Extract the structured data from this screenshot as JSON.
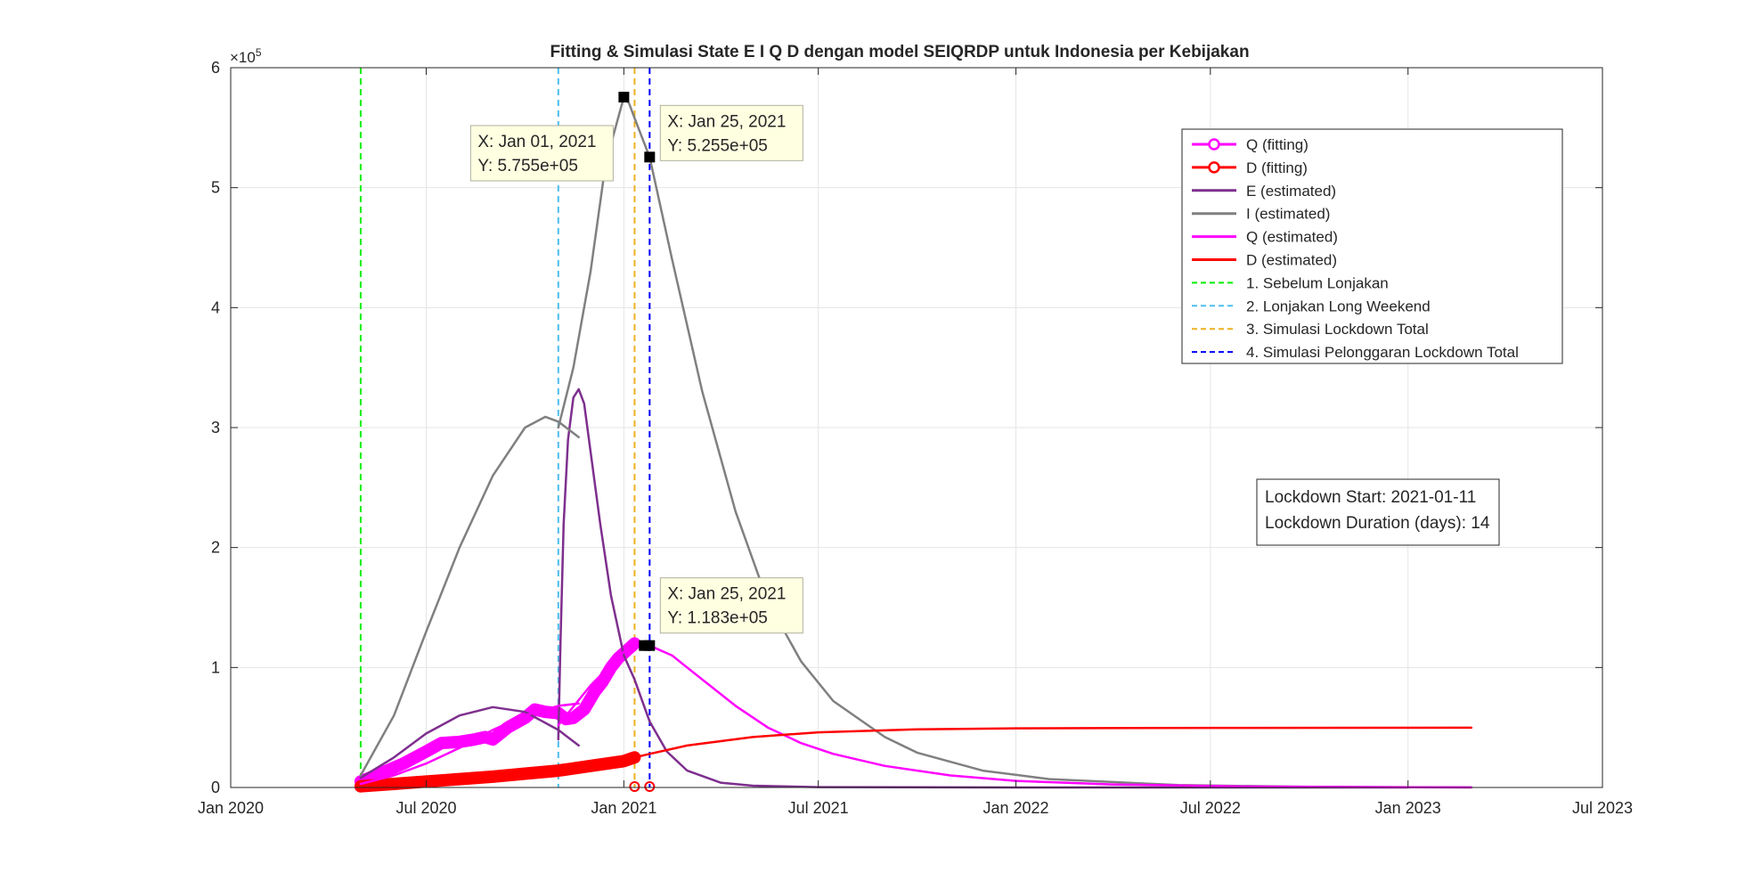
{
  "chart_data": {
    "type": "line",
    "title": "Fitting & Simulasi State  E I Q D dengan model SEIQRDP untuk Indonesia per Kebijakan",
    "xlabel": "",
    "ylabel": "",
    "y_exponent_label": "×10",
    "y_exponent_power": "5",
    "xlim": [
      "2020-01-01",
      "2023-07-01"
    ],
    "ylim": [
      0,
      600000
    ],
    "grid": true,
    "x_ticks": [
      {
        "date": "2020-01-01",
        "label": "Jan 2020"
      },
      {
        "date": "2020-07-01",
        "label": "Jul 2020"
      },
      {
        "date": "2021-01-01",
        "label": "Jan 2021"
      },
      {
        "date": "2021-07-01",
        "label": "Jul 2021"
      },
      {
        "date": "2022-01-01",
        "label": "Jan 2022"
      },
      {
        "date": "2022-07-01",
        "label": "Jul 2022"
      },
      {
        "date": "2023-01-01",
        "label": "Jan 2023"
      },
      {
        "date": "2023-07-01",
        "label": "Jul 2023"
      }
    ],
    "y_ticks": [
      {
        "value": 0,
        "label": "0"
      },
      {
        "value": 100000,
        "label": "1"
      },
      {
        "value": 200000,
        "label": "2"
      },
      {
        "value": 300000,
        "label": "3"
      },
      {
        "value": 400000,
        "label": "4"
      },
      {
        "value": 500000,
        "label": "5"
      },
      {
        "value": 600000,
        "label": "6"
      }
    ],
    "legend_position": "top-right",
    "legend": [
      {
        "label": "Q (fitting)",
        "color": "#ff00ff",
        "style": "solid-marker"
      },
      {
        "label": "D (fitting)",
        "color": "#ff0000",
        "style": "solid-marker"
      },
      {
        "label": "E (estimated)",
        "color": "#7e2f8e",
        "style": "solid"
      },
      {
        "label": "I (estimated)",
        "color": "#808080",
        "style": "solid"
      },
      {
        "label": "Q (estimated)",
        "color": "#ff00ff",
        "style": "solid"
      },
      {
        "label": "D (estimated)",
        "color": "#ff0000",
        "style": "solid"
      },
      {
        "label": "1. Sebelum Lonjakan",
        "color": "#00ee00",
        "style": "dashed"
      },
      {
        "label": "2. Lonjakan Long Weekend",
        "color": "#4dbeee",
        "style": "dashed"
      },
      {
        "label": "3. Simulasi Lockdown Total",
        "color": "#edb120",
        "style": "dashed"
      },
      {
        "label": "4. Simulasi Pelonggaran Lockdown Total",
        "color": "#0000ff",
        "style": "dashed"
      }
    ],
    "vlines": [
      {
        "date": "2020-05-01",
        "color": "#00ee00"
      },
      {
        "date": "2020-11-01",
        "color": "#4dbeee"
      },
      {
        "date": "2021-01-11",
        "color": "#edb120"
      },
      {
        "date": "2021-01-25",
        "color": "#0000ff"
      }
    ],
    "series": [
      {
        "name": "Q (fitting)",
        "color": "#ff00ff",
        "width": 14,
        "segments": [
          [
            [
              "2020-05-01",
              5000
            ],
            [
              "2020-05-20",
              12000
            ],
            [
              "2020-06-10",
              20000
            ],
            [
              "2020-07-01",
              30000
            ],
            [
              "2020-07-15",
              37000
            ],
            [
              "2020-08-01",
              38000
            ],
            [
              "2020-08-15",
              40000
            ],
            [
              "2020-08-25",
              42000
            ],
            [
              "2020-09-01",
              40000
            ],
            [
              "2020-09-15",
              50000
            ],
            [
              "2020-10-01",
              58000
            ],
            [
              "2020-10-10",
              65000
            ],
            [
              "2020-10-20",
              63000
            ],
            [
              "2020-11-01",
              62000
            ],
            [
              "2020-11-08",
              57000
            ],
            [
              "2020-11-15",
              58000
            ],
            [
              "2020-11-25",
              65000
            ],
            [
              "2020-12-05",
              80000
            ],
            [
              "2020-12-12",
              88000
            ],
            [
              "2020-12-20",
              100000
            ],
            [
              "2020-12-27",
              108000
            ],
            [
              "2021-01-01",
              112000
            ],
            [
              "2021-01-06",
              116000
            ],
            [
              "2021-01-11",
              120000
            ]
          ]
        ]
      },
      {
        "name": "D (fitting)",
        "color": "#ff0000",
        "width": 14,
        "segments": [
          [
            [
              "2020-05-01",
              1000
            ],
            [
              "2020-06-01",
              3000
            ],
            [
              "2020-07-01",
              5000
            ],
            [
              "2020-08-01",
              7000
            ],
            [
              "2020-09-01",
              9000
            ],
            [
              "2020-10-01",
              11500
            ],
            [
              "2020-11-01",
              14000
            ],
            [
              "2020-12-01",
              18000
            ],
            [
              "2021-01-01",
              22000
            ],
            [
              "2021-01-11",
              25000
            ]
          ]
        ]
      },
      {
        "name": "E (estimated)",
        "color": "#7e2f8e",
        "width": 2.5,
        "segments": [
          [
            [
              "2020-05-01",
              8000
            ],
            [
              "2020-06-01",
              25000
            ],
            [
              "2020-07-01",
              45000
            ],
            [
              "2020-08-01",
              60000
            ],
            [
              "2020-09-01",
              67000
            ],
            [
              "2020-10-01",
              63000
            ],
            [
              "2020-11-01",
              48000
            ],
            [
              "2020-11-20",
              35000
            ]
          ],
          [
            [
              "2020-11-01",
              40000
            ],
            [
              "2020-11-03",
              120000
            ],
            [
              "2020-11-06",
              220000
            ],
            [
              "2020-11-10",
              290000
            ],
            [
              "2020-11-15",
              325000
            ],
            [
              "2020-11-20",
              332000
            ],
            [
              "2020-11-25",
              320000
            ],
            [
              "2020-12-01",
              280000
            ],
            [
              "2020-12-10",
              220000
            ],
            [
              "2020-12-20",
              160000
            ],
            [
              "2021-01-01",
              110000
            ],
            [
              "2021-01-11",
              90000
            ],
            [
              "2021-01-25",
              55000
            ],
            [
              "2021-02-10",
              30000
            ],
            [
              "2021-03-01",
              14000
            ],
            [
              "2021-04-01",
              4000
            ],
            [
              "2021-05-01",
              1500
            ],
            [
              "2021-07-01",
              300
            ],
            [
              "2022-01-01",
              0
            ],
            [
              "2023-01-01",
              0
            ]
          ]
        ]
      },
      {
        "name": "I (estimated)",
        "color": "#808080",
        "width": 2.5,
        "segments": [
          [
            [
              "2020-05-01",
              10000
            ],
            [
              "2020-06-01",
              60000
            ],
            [
              "2020-07-01",
              130000
            ],
            [
              "2020-08-01",
              200000
            ],
            [
              "2020-09-01",
              260000
            ],
            [
              "2020-10-01",
              300000
            ],
            [
              "2020-10-20",
              309000
            ],
            [
              "2020-11-01",
              305000
            ],
            [
              "2020-11-20",
              292000
            ]
          ],
          [
            [
              "2020-11-01",
              300000
            ],
            [
              "2020-11-15",
              350000
            ],
            [
              "2020-12-01",
              430000
            ],
            [
              "2020-12-15",
              520000
            ],
            [
              "2021-01-01",
              575500
            ],
            [
              "2021-01-06",
              570000
            ],
            [
              "2021-01-11",
              558000
            ],
            [
              "2021-01-25",
              525500
            ],
            [
              "2021-02-15",
              440000
            ],
            [
              "2021-03-15",
              330000
            ],
            [
              "2021-04-15",
              230000
            ],
            [
              "2021-05-15",
              155000
            ],
            [
              "2021-06-15",
              105000
            ],
            [
              "2021-07-15",
              72000
            ],
            [
              "2021-09-01",
              42000
            ],
            [
              "2021-10-01",
              29000
            ],
            [
              "2021-12-01",
              14000
            ],
            [
              "2022-02-01",
              7000
            ],
            [
              "2022-06-01",
              2000
            ],
            [
              "2022-10-01",
              500
            ],
            [
              "2023-03-01",
              0
            ]
          ]
        ]
      },
      {
        "name": "Q (estimated)",
        "color": "#ff00ff",
        "width": 2.5,
        "segments": [
          [
            [
              "2020-05-01",
              3000
            ],
            [
              "2020-06-01",
              10000
            ],
            [
              "2020-07-01",
              20000
            ],
            [
              "2020-08-01",
              33000
            ],
            [
              "2020-09-01",
              48000
            ],
            [
              "2020-10-01",
              60000
            ],
            [
              "2020-11-01",
              68000
            ],
            [
              "2020-11-20",
              70000
            ]
          ],
          [
            [
              "2020-11-01",
              52000
            ],
            [
              "2020-12-01",
              85000
            ],
            [
              "2021-01-01",
              113000
            ],
            [
              "2021-01-11",
              117000
            ],
            [
              "2021-01-25",
              118300
            ],
            [
              "2021-02-15",
              110000
            ],
            [
              "2021-03-15",
              90000
            ],
            [
              "2021-04-15",
              68000
            ],
            [
              "2021-05-15",
              50000
            ],
            [
              "2021-06-15",
              37000
            ],
            [
              "2021-07-15",
              28000
            ],
            [
              "2021-09-01",
              18000
            ],
            [
              "2021-11-01",
              10000
            ],
            [
              "2022-01-01",
              5500
            ],
            [
              "2022-04-01",
              2500
            ],
            [
              "2022-08-01",
              800
            ],
            [
              "2023-01-01",
              200
            ],
            [
              "2023-03-01",
              100
            ]
          ]
        ]
      },
      {
        "name": "D (estimated)",
        "color": "#ff0000",
        "width": 2.5,
        "segments": [
          [
            [
              "2020-05-01",
              1000
            ],
            [
              "2020-07-01",
              5000
            ],
            [
              "2020-09-01",
              9000
            ],
            [
              "2020-11-01",
              14000
            ],
            [
              "2021-01-01",
              22000
            ],
            [
              "2021-01-11",
              25000
            ],
            [
              "2021-01-25",
              28000
            ],
            [
              "2021-03-01",
              35000
            ],
            [
              "2021-05-01",
              42000
            ],
            [
              "2021-07-01",
              46000
            ],
            [
              "2021-10-01",
              48500
            ],
            [
              "2022-01-01",
              49300
            ],
            [
              "2022-07-01",
              49700
            ],
            [
              "2023-03-01",
              49800
            ]
          ]
        ]
      }
    ],
    "markers": [
      {
        "date": "2021-01-01",
        "value": 575500
      },
      {
        "date": "2021-01-25",
        "value": 525500
      },
      {
        "date": "2021-01-25",
        "value": 118300
      },
      {
        "date": "2021-01-20",
        "value": 118300
      }
    ],
    "circle_markers": [
      {
        "date": "2021-01-11",
        "value": 0
      },
      {
        "date": "2021-01-25",
        "value": 0
      }
    ],
    "datatips": [
      {
        "x_text": "X: Jan 01, 2021",
        "y_text": "Y: 5.755e+05",
        "placement": "left"
      },
      {
        "x_text": "X: Jan 25, 2021",
        "y_text": "Y: 5.255e+05",
        "placement": "right"
      },
      {
        "x_text": "X: Jan 25, 2021",
        "y_text": "Y: 1.183e+05",
        "placement": "right"
      }
    ],
    "info_box": {
      "line1": "Lockdown Start: 2021-01-11",
      "line2": "Lockdown Duration (days): 14"
    }
  }
}
